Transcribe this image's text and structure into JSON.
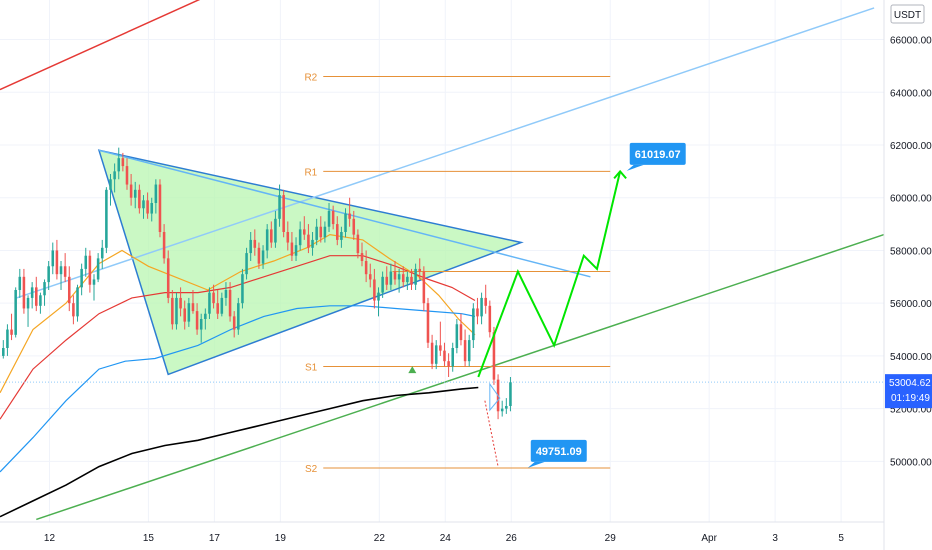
{
  "chart_data": {
    "type": "candlestick",
    "currency_badge": "USDT",
    "y_ticks": [
      50000,
      52000,
      54000,
      56000,
      58000,
      60000,
      62000,
      64000,
      66000
    ],
    "y_tick_labels": [
      "50000.00",
      "52000.00",
      "54000.00",
      "56000.00",
      "58000.00",
      "60000.00",
      "62000.00",
      "64000.00",
      "66000.00"
    ],
    "ylim": [
      47700,
      67500
    ],
    "x_ticks": [
      {
        "label": "12",
        "day": 12
      },
      {
        "label": "15",
        "day": 15
      },
      {
        "label": "17",
        "day": 17
      },
      {
        "label": "19",
        "day": 19
      },
      {
        "label": "22",
        "day": 22
      },
      {
        "label": "24",
        "day": 24
      },
      {
        "label": "26",
        "day": 26
      },
      {
        "label": "29",
        "day": 29
      },
      {
        "label": "Apr",
        "day": 32
      },
      {
        "label": "3",
        "day": 34
      },
      {
        "label": "5",
        "day": 36
      }
    ],
    "xlim": [
      10.5,
      37.3
    ],
    "current_price": {
      "label": "53004.62",
      "countdown": "01:19:49",
      "value": 53004.62,
      "color": "#2962ff"
    },
    "pivot_levels": [
      {
        "label": "R2",
        "value": 64600,
        "x_from": 20.3,
        "x_to": 29
      },
      {
        "label": "R1",
        "value": 61000,
        "x_from": 20.3,
        "x_to": 29
      },
      {
        "label": "S1",
        "value": 53600,
        "x_from": 20.3,
        "x_to": 29
      },
      {
        "label": "S2",
        "value": 49750,
        "x_from": 20.3,
        "x_to": 29
      }
    ],
    "extra_level": {
      "value": 57200,
      "x_from": 22.4,
      "x_to": 29
    },
    "callouts": [
      {
        "label": "61019.07",
        "value": 61019.07,
        "day": 29.5
      },
      {
        "label": "49751.09",
        "value": 49751.09,
        "day": 26.5
      }
    ],
    "candles_start_day": 10.6,
    "candles_per_day": 8,
    "candles": [
      [
        54000,
        54600,
        53900,
        54300
      ],
      [
        54300,
        55200,
        54000,
        55000
      ],
      [
        55000,
        55600,
        54600,
        54800
      ],
      [
        54800,
        56600,
        54700,
        56500
      ],
      [
        56500,
        57300,
        56200,
        57000
      ],
      [
        57000,
        57300,
        55600,
        55800
      ],
      [
        55800,
        56300,
        55100,
        56200
      ],
      [
        56200,
        56800,
        55800,
        56600
      ],
      [
        56600,
        57000,
        55700,
        55900
      ],
      [
        55900,
        56400,
        55600,
        56300
      ],
      [
        56300,
        56900,
        55900,
        56800
      ],
      [
        56800,
        57600,
        56500,
        57400
      ],
      [
        57400,
        58300,
        57100,
        58000
      ],
      [
        58000,
        58400,
        56900,
        57100
      ],
      [
        57100,
        57600,
        56500,
        57400
      ],
      [
        57400,
        57900,
        56800,
        57000
      ],
      [
        57000,
        57400,
        55700,
        56000
      ],
      [
        56000,
        56300,
        55200,
        55500
      ],
      [
        55500,
        56700,
        55300,
        56600
      ],
      [
        56600,
        57500,
        56300,
        57300
      ],
      [
        57300,
        58100,
        57000,
        57800
      ],
      [
        57800,
        58000,
        56400,
        56700
      ],
      [
        56700,
        57100,
        56100,
        56900
      ],
      [
        56900,
        57900,
        56800,
        57700
      ],
      [
        57700,
        58400,
        57300,
        58100
      ],
      [
        58100,
        60400,
        57900,
        60300
      ],
      [
        60300,
        60900,
        59700,
        60700
      ],
      [
        60700,
        61300,
        60200,
        61000
      ],
      [
        61000,
        61900,
        60700,
        61500
      ],
      [
        61500,
        61700,
        61000,
        61200
      ],
      [
        61200,
        61500,
        60300,
        60500
      ],
      [
        60500,
        60900,
        59700,
        60000
      ],
      [
        60000,
        60600,
        59600,
        60300
      ],
      [
        60300,
        60500,
        59400,
        59600
      ],
      [
        59600,
        60100,
        59200,
        59900
      ],
      [
        59900,
        60200,
        59200,
        59400
      ],
      [
        59400,
        60000,
        59100,
        59800
      ],
      [
        59800,
        60700,
        59400,
        60500
      ],
      [
        60500,
        60700,
        58500,
        58700
      ],
      [
        58700,
        59000,
        57500,
        57700
      ],
      [
        57700,
        58000,
        56000,
        56200
      ],
      [
        56200,
        56500,
        55000,
        55200
      ],
      [
        55200,
        56400,
        55000,
        56200
      ],
      [
        56200,
        56600,
        55500,
        55800
      ],
      [
        55800,
        56100,
        55000,
        55300
      ],
      [
        55300,
        56200,
        55100,
        56000
      ],
      [
        56000,
        56500,
        55600,
        55700
      ],
      [
        55700,
        56000,
        54800,
        55000
      ],
      [
        55000,
        55600,
        54500,
        55400
      ],
      [
        55400,
        55800,
        55000,
        55600
      ],
      [
        55600,
        56600,
        55400,
        56400
      ],
      [
        56400,
        56700,
        55800,
        56000
      ],
      [
        56000,
        56500,
        55400,
        55600
      ],
      [
        55600,
        56400,
        55500,
        56200
      ],
      [
        56200,
        56800,
        55900,
        56500
      ],
      [
        56500,
        56800,
        55300,
        55500
      ],
      [
        55500,
        55700,
        54700,
        55000
      ],
      [
        55000,
        56200,
        54800,
        56000
      ],
      [
        56000,
        57300,
        55800,
        57100
      ],
      [
        57100,
        58100,
        56900,
        57900
      ],
      [
        57900,
        58700,
        57600,
        58400
      ],
      [
        58400,
        58800,
        57800,
        58100
      ],
      [
        58100,
        58300,
        57300,
        57500
      ],
      [
        57500,
        58200,
        57300,
        58000
      ],
      [
        58000,
        59000,
        57700,
        58800
      ],
      [
        58800,
        59100,
        58100,
        58300
      ],
      [
        58300,
        59500,
        58100,
        59200
      ],
      [
        59200,
        60500,
        58900,
        60100
      ],
      [
        60100,
        60300,
        58500,
        58700
      ],
      [
        58700,
        59100,
        58000,
        58300
      ],
      [
        58300,
        58700,
        57600,
        57800
      ],
      [
        57800,
        58500,
        57600,
        58200
      ],
      [
        58200,
        59100,
        58000,
        58800
      ],
      [
        58800,
        59300,
        58400,
        58600
      ],
      [
        58600,
        59000,
        57900,
        58100
      ],
      [
        58100,
        58700,
        57800,
        58400
      ],
      [
        58400,
        59200,
        58200,
        58900
      ],
      [
        58900,
        59300,
        58300,
        58500
      ],
      [
        58500,
        59100,
        58300,
        58900
      ],
      [
        58900,
        59800,
        58700,
        59500
      ],
      [
        59500,
        59700,
        58800,
        59000
      ],
      [
        59000,
        59300,
        58200,
        58400
      ],
      [
        58400,
        58900,
        58100,
        58700
      ],
      [
        58700,
        59600,
        58500,
        59400
      ],
      [
        59400,
        60000,
        58900,
        59200
      ],
      [
        59200,
        59500,
        58400,
        58600
      ],
      [
        58600,
        58800,
        57700,
        57900
      ],
      [
        57900,
        58300,
        57400,
        57600
      ],
      [
        57600,
        58000,
        56800,
        57100
      ],
      [
        57100,
        57500,
        56600,
        56900
      ],
      [
        56900,
        57300,
        55800,
        56100
      ],
      [
        56100,
        56600,
        55500,
        56400
      ],
      [
        56400,
        57200,
        56200,
        57000
      ],
      [
        57000,
        57400,
        56500,
        56700
      ],
      [
        56700,
        57500,
        56500,
        57200
      ],
      [
        57200,
        57600,
        56700,
        56900
      ],
      [
        56900,
        57300,
        56400,
        57100
      ],
      [
        57100,
        57400,
        56600,
        56800
      ],
      [
        56800,
        57200,
        56500,
        57000
      ],
      [
        57000,
        57300,
        56500,
        56700
      ],
      [
        56700,
        57500,
        56500,
        57300
      ],
      [
        57300,
        57700,
        56900,
        57200
      ],
      [
        57200,
        57400,
        55700,
        56000
      ],
      [
        56000,
        56200,
        54300,
        54500
      ],
      [
        54500,
        54800,
        53500,
        53700
      ],
      [
        53700,
        54600,
        53500,
        54400
      ],
      [
        54400,
        55300,
        54000,
        54200
      ],
      [
        54200,
        54500,
        53600,
        53800
      ],
      [
        53800,
        54100,
        53200,
        53600
      ],
      [
        53600,
        54500,
        53400,
        54300
      ],
      [
        54300,
        55400,
        54100,
        55200
      ],
      [
        55200,
        55600,
        54400,
        54600
      ],
      [
        54600,
        55000,
        53600,
        53800
      ],
      [
        53800,
        54800,
        53600,
        54600
      ],
      [
        54600,
        56000,
        54300,
        55800
      ],
      [
        55800,
        56200,
        55200,
        55500
      ],
      [
        55500,
        56400,
        55200,
        56200
      ],
      [
        56200,
        56700,
        55600,
        55900
      ],
      [
        55900,
        56100,
        54700,
        54900
      ],
      [
        54900,
        55100,
        52900,
        53100
      ],
      [
        53100,
        53300,
        51600,
        51900
      ],
      [
        51900,
        52300,
        51700,
        52000
      ],
      [
        52000,
        52400,
        51800,
        52100
      ],
      [
        52100,
        53200,
        51900,
        53000
      ]
    ],
    "moving_averages": [
      {
        "name": "",
        "color": "#f5a623",
        "points": [
          [
            10.5,
            52600
          ],
          [
            11.5,
            55000
          ],
          [
            12.5,
            56000
          ],
          [
            13.5,
            57500
          ],
          [
            14.2,
            58000
          ],
          [
            15.0,
            57400
          ],
          [
            15.8,
            57000
          ],
          [
            16.8,
            56500
          ],
          [
            17.8,
            57200
          ],
          [
            18.8,
            57600
          ],
          [
            19.8,
            58100
          ],
          [
            20.5,
            58600
          ],
          [
            21.5,
            58400
          ],
          [
            22.3,
            57700
          ],
          [
            23.2,
            57000
          ],
          [
            23.8,
            56300
          ],
          [
            24.4,
            55400
          ],
          [
            24.9,
            54800
          ]
        ]
      },
      {
        "name": "",
        "color": "#e53935",
        "points": [
          [
            10.5,
            51600
          ],
          [
            11.5,
            53500
          ],
          [
            12.5,
            54600
          ],
          [
            13.5,
            55600
          ],
          [
            14.5,
            56200
          ],
          [
            15.5,
            56400
          ],
          [
            16.5,
            56400
          ],
          [
            17.5,
            56600
          ],
          [
            18.5,
            57000
          ],
          [
            19.5,
            57400
          ],
          [
            20.5,
            57800
          ],
          [
            21.5,
            57800
          ],
          [
            22.5,
            57400
          ],
          [
            23.5,
            56900
          ],
          [
            24.2,
            56600
          ],
          [
            24.9,
            56100
          ]
        ]
      },
      {
        "name": "",
        "color": "#2196f3",
        "points": [
          [
            10.5,
            49600
          ],
          [
            11.5,
            50900
          ],
          [
            12.5,
            52300
          ],
          [
            13.5,
            53500
          ],
          [
            14.3,
            53800
          ],
          [
            15.2,
            53900
          ],
          [
            16.5,
            54400
          ],
          [
            17.5,
            55000
          ],
          [
            18.5,
            55500
          ],
          [
            19.5,
            55800
          ],
          [
            20.5,
            55900
          ],
          [
            21.5,
            55900
          ],
          [
            22.5,
            55800
          ],
          [
            23.5,
            55700
          ],
          [
            24.5,
            55600
          ],
          [
            24.9,
            55500
          ]
        ]
      },
      {
        "name": "",
        "color": "#000000",
        "points": [
          [
            10.5,
            47900
          ],
          [
            11.5,
            48500
          ],
          [
            12.5,
            49100
          ],
          [
            13.5,
            49800
          ],
          [
            14.5,
            50300
          ],
          [
            15.5,
            50600
          ],
          [
            16.5,
            50800
          ],
          [
            17.5,
            51100
          ],
          [
            18.5,
            51400
          ],
          [
            19.5,
            51700
          ],
          [
            20.5,
            52000
          ],
          [
            21.5,
            52300
          ],
          [
            22.5,
            52500
          ],
          [
            23.5,
            52600
          ],
          [
            24.5,
            52750
          ],
          [
            25.0,
            52800
          ]
        ]
      }
    ],
    "triangle": {
      "points": [
        [
          13.5,
          61800
        ],
        [
          15.6,
          53300
        ],
        [
          26.3,
          58300
        ]
      ],
      "fill": "#b8f5b0",
      "stroke": "#2d7dd2"
    },
    "trendlines": [
      {
        "color": "#e53935",
        "points": [
          [
            10.5,
            64100
          ],
          [
            17.4,
            68000
          ]
        ]
      },
      {
        "color": "#4caf50",
        "points": [
          [
            11.6,
            47800
          ],
          [
            37.3,
            58600
          ]
        ]
      },
      {
        "color": "#90caf9",
        "points": [
          [
            11.0,
            56200
          ],
          [
            37.0,
            67200
          ]
        ]
      },
      {
        "color": "#64b5f6",
        "points": [
          [
            13.5,
            61800
          ],
          [
            28.4,
            57000
          ]
        ]
      }
    ],
    "projection_path": {
      "color": "#00e600",
      "points": [
        [
          25.0,
          53200
        ],
        [
          26.2,
          57200
        ],
        [
          27.3,
          54400
        ],
        [
          28.2,
          57800
        ],
        [
          28.6,
          57300
        ],
        [
          29.3,
          61000
        ]
      ]
    },
    "dotted_path": {
      "color": "#e53935",
      "points": [
        [
          25.2,
          52300
        ],
        [
          25.6,
          49800
        ]
      ]
    },
    "up_marker": {
      "day": 23.0,
      "value": 53500,
      "color": "#4caf50"
    }
  }
}
